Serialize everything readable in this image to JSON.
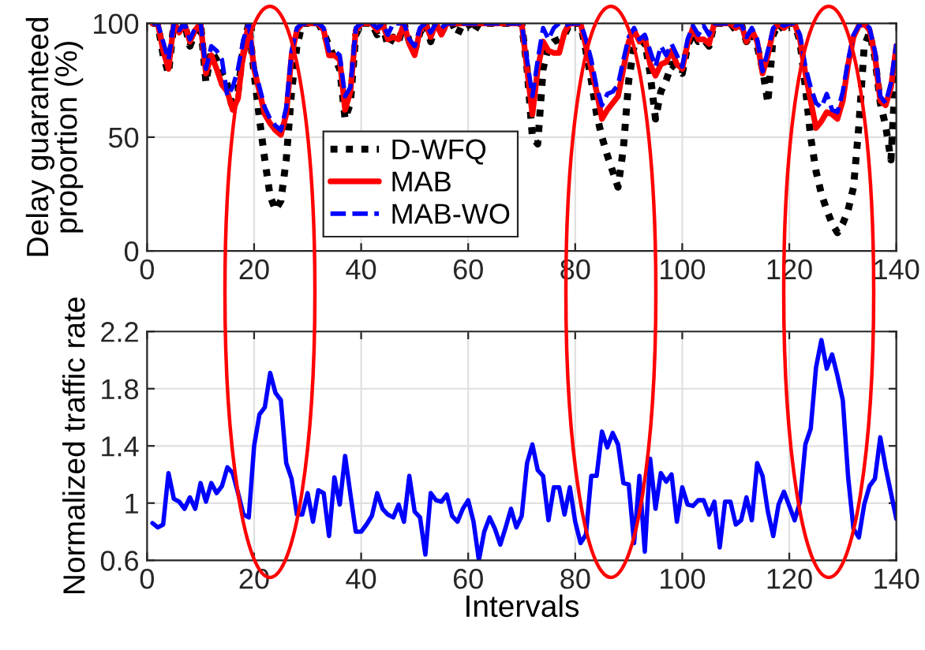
{
  "chart_data": [
    {
      "type": "line",
      "ylabel": "Delay guaranteed\nproportion (%)",
      "xlim": [
        0,
        140
      ],
      "xticks": [
        0,
        20,
        40,
        60,
        80,
        100,
        120,
        140
      ],
      "ylim": [
        0,
        100
      ],
      "yticks": [
        0,
        50,
        100
      ],
      "grid": true,
      "legend": "bottom",
      "x": [
        1,
        2,
        3,
        4,
        5,
        6,
        7,
        8,
        9,
        10,
        11,
        12,
        13,
        14,
        15,
        16,
        17,
        18,
        19,
        20,
        21,
        22,
        23,
        24,
        25,
        26,
        27,
        28,
        29,
        30,
        31,
        32,
        33,
        34,
        35,
        36,
        37,
        38,
        39,
        40,
        41,
        42,
        43,
        44,
        45,
        46,
        47,
        48,
        49,
        50,
        51,
        52,
        53,
        54,
        55,
        56,
        57,
        58,
        59,
        60,
        61,
        62,
        63,
        64,
        65,
        66,
        67,
        68,
        69,
        70,
        71,
        72,
        73,
        74,
        75,
        76,
        77,
        78,
        79,
        80,
        81,
        82,
        83,
        84,
        85,
        86,
        87,
        88,
        89,
        90,
        91,
        92,
        93,
        94,
        95,
        96,
        97,
        98,
        99,
        100,
        101,
        102,
        103,
        104,
        105,
        106,
        107,
        108,
        109,
        110,
        111,
        112,
        113,
        114,
        115,
        116,
        117,
        118,
        119,
        120,
        121,
        122,
        123,
        124,
        125,
        126,
        127,
        128,
        129,
        130,
        131,
        132,
        133,
        134,
        135,
        136,
        137,
        138,
        139,
        140
      ],
      "series": [
        {
          "name": "D-WFQ",
          "color": "#000000",
          "line_style": "dotted",
          "values": [
            100,
            100,
            86,
            78,
            100,
            95,
            100,
            90,
            96,
            100,
            74,
            88,
            84,
            78,
            73,
            62,
            70,
            90,
            100,
            78,
            58,
            40,
            24,
            18,
            22,
            40,
            70,
            90,
            100,
            100,
            100,
            100,
            96,
            90,
            85,
            80,
            58,
            65,
            95,
            100,
            100,
            100,
            95,
            100,
            90,
            94,
            92,
            100,
            92,
            88,
            96,
            100,
            92,
            100,
            96,
            100,
            100,
            95,
            100,
            100,
            96,
            100,
            100,
            100,
            100,
            100,
            100,
            100,
            100,
            100,
            80,
            50,
            47,
            80,
            90,
            92,
            93,
            95,
            100,
            100,
            100,
            88,
            75,
            60,
            50,
            42,
            35,
            28,
            45,
            75,
            90,
            90,
            92,
            78,
            58,
            70,
            75,
            82,
            80,
            78,
            90,
            96,
            92,
            93,
            90,
            100,
            100,
            100,
            100,
            97,
            100,
            92,
            96,
            90,
            80,
            65,
            95,
            100,
            97,
            100,
            100,
            92,
            72,
            50,
            35,
            25,
            18,
            12,
            8,
            12,
            18,
            28,
            55,
            90,
            96,
            85,
            65,
            55,
            40,
            85
          ]
        },
        {
          "name": "MAB",
          "color": "#ff0000",
          "line_style": "solid",
          "values": [
            100,
            100,
            88,
            80,
            100,
            96,
            100,
            92,
            97,
            100,
            78,
            86,
            80,
            73,
            70,
            62,
            67,
            88,
            100,
            80,
            70,
            60,
            56,
            53,
            51,
            60,
            86,
            97,
            100,
            100,
            100,
            100,
            97,
            86,
            86,
            84,
            62,
            70,
            97,
            100,
            100,
            100,
            97,
            100,
            93,
            94,
            93,
            100,
            91,
            86,
            97,
            100,
            94,
            100,
            95,
            100,
            100,
            100,
            100,
            100,
            100,
            100,
            100,
            100,
            100,
            100,
            100,
            100,
            100,
            100,
            80,
            60,
            80,
            92,
            88,
            87,
            87,
            96,
            100,
            100,
            100,
            90,
            80,
            70,
            58,
            62,
            65,
            68,
            80,
            92,
            97,
            92,
            94,
            82,
            77,
            82,
            83,
            88,
            82,
            80,
            91,
            98,
            93,
            93,
            91,
            100,
            100,
            100,
            100,
            98,
            100,
            92,
            97,
            92,
            78,
            86,
            97,
            100,
            98,
            100,
            100,
            93,
            78,
            66,
            54,
            57,
            61,
            60,
            58,
            66,
            82,
            94,
            99,
            100,
            97,
            86,
            66,
            64,
            72,
            90
          ]
        },
        {
          "name": "MAB-WO",
          "color": "#0000ff",
          "line_style": "dashed",
          "values": [
            100,
            100,
            92,
            84,
            100,
            97,
            100,
            93,
            98,
            100,
            80,
            90,
            88,
            84,
            68,
            72,
            80,
            93,
            100,
            81,
            72,
            63,
            58,
            55,
            53,
            63,
            88,
            98,
            100,
            100,
            100,
            100,
            98,
            88,
            88,
            86,
            68,
            72,
            98,
            100,
            100,
            100,
            98,
            100,
            95,
            100,
            100,
            100,
            93,
            90,
            98,
            100,
            96,
            100,
            98,
            100,
            100,
            100,
            100,
            100,
            100,
            100,
            100,
            100,
            100,
            100,
            100,
            100,
            100,
            100,
            84,
            68,
            84,
            98,
            93,
            98,
            100,
            99,
            100,
            100,
            100,
            93,
            84,
            72,
            64,
            69,
            70,
            73,
            84,
            94,
            98,
            93,
            95,
            88,
            81,
            90,
            86,
            91,
            86,
            81,
            93,
            99,
            95,
            99,
            95,
            100,
            100,
            100,
            100,
            99,
            100,
            94,
            98,
            93,
            79,
            88,
            98,
            100,
            99,
            100,
            100,
            95,
            81,
            72,
            65,
            63,
            69,
            62,
            61,
            70,
            84,
            95,
            99,
            100,
            98,
            88,
            68,
            65,
            74,
            91
          ]
        }
      ]
    },
    {
      "type": "line",
      "xlabel": "Intervals",
      "ylabel": "Normalized traffic rate",
      "xlim": [
        0,
        140
      ],
      "xticks": [
        0,
        20,
        40,
        60,
        80,
        100,
        120,
        140
      ],
      "ylim": [
        0.6,
        2.2
      ],
      "yticks": [
        0.6,
        1,
        1.4,
        1.8,
        2.2
      ],
      "grid": true,
      "x": [
        1,
        2,
        3,
        4,
        5,
        6,
        7,
        8,
        9,
        10,
        11,
        12,
        13,
        14,
        15,
        16,
        17,
        18,
        19,
        20,
        21,
        22,
        23,
        24,
        25,
        26,
        27,
        28,
        29,
        30,
        31,
        32,
        33,
        34,
        35,
        36,
        37,
        38,
        39,
        40,
        41,
        42,
        43,
        44,
        45,
        46,
        47,
        48,
        49,
        50,
        51,
        52,
        53,
        54,
        55,
        56,
        57,
        58,
        59,
        60,
        61,
        62,
        63,
        64,
        65,
        66,
        67,
        68,
        69,
        70,
        71,
        72,
        73,
        74,
        75,
        76,
        77,
        78,
        79,
        80,
        81,
        82,
        83,
        84,
        85,
        86,
        87,
        88,
        89,
        90,
        91,
        92,
        93,
        94,
        95,
        96,
        97,
        98,
        99,
        100,
        101,
        102,
        103,
        104,
        105,
        106,
        107,
        108,
        109,
        110,
        111,
        112,
        113,
        114,
        115,
        116,
        117,
        118,
        119,
        120,
        121,
        122,
        123,
        124,
        125,
        126,
        127,
        128,
        129,
        130,
        131,
        132,
        133,
        134,
        135,
        136,
        137,
        138,
        139,
        140
      ],
      "series": [
        {
          "color": "#0000ff",
          "line_style": "solid",
          "values": [
            0.86,
            0.83,
            0.85,
            1.21,
            1.03,
            1.01,
            0.96,
            1.04,
            0.96,
            1.14,
            1.01,
            1.14,
            1.07,
            1.12,
            1.25,
            1.21,
            1.07,
            0.92,
            0.9,
            1.4,
            1.62,
            1.67,
            1.91,
            1.77,
            1.72,
            1.28,
            1.17,
            0.92,
            0.92,
            1.07,
            0.87,
            1.09,
            1.07,
            0.77,
            1.18,
            0.99,
            1.33,
            1.06,
            0.8,
            0.8,
            0.85,
            0.91,
            1.07,
            0.96,
            0.92,
            0.9,
            0.99,
            0.87,
            1.19,
            0.94,
            0.9,
            0.64,
            1.07,
            1.02,
            1.01,
            1.06,
            0.91,
            0.87,
            0.96,
            1.02,
            0.87,
            0.6,
            0.8,
            0.9,
            0.82,
            0.71,
            0.83,
            0.96,
            0.83,
            0.91,
            1.28,
            1.41,
            1.23,
            1.19,
            0.88,
            1.11,
            1.11,
            0.92,
            1.11,
            0.87,
            0.72,
            0.78,
            1.19,
            1.19,
            1.5,
            1.39,
            1.49,
            1.41,
            1.14,
            1.13,
            0.72,
            1.19,
            0.66,
            1.31,
            0.96,
            1.21,
            1.15,
            1.2,
            0.87,
            1.11,
            0.99,
            0.98,
            1.02,
            1.02,
            0.92,
            1.01,
            0.69,
            1.01,
            1.01,
            0.85,
            0.88,
            1.04,
            0.88,
            1.28,
            1.19,
            0.94,
            0.77,
            0.99,
            1.08,
            0.98,
            0.88,
            1.01,
            1.41,
            1.52,
            1.95,
            2.14,
            1.94,
            2.04,
            1.89,
            1.72,
            1.18,
            0.82,
            0.76,
            0.99,
            1.12,
            1.17,
            1.46,
            1.25,
            1.07,
            0.89
          ]
        }
      ]
    }
  ]
}
